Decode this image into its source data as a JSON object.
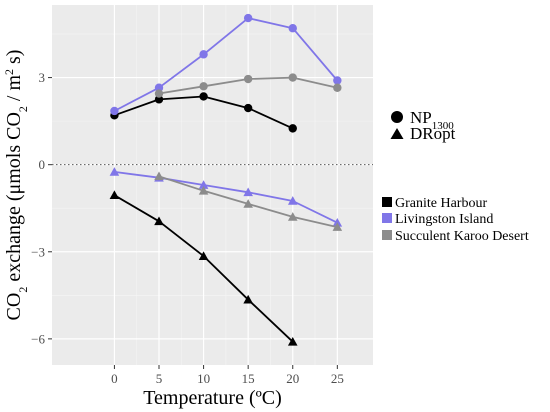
{
  "chart_data": {
    "type": "line",
    "x": [
      0,
      5,
      10,
      15,
      20,
      25
    ],
    "xlim": [
      -7,
      29
    ],
    "ylim": [
      -6.9,
      5.5
    ],
    "xticks": [
      "0",
      "5",
      "10",
      "15",
      "20",
      "25"
    ],
    "yticks": [
      {
        "value": -6,
        "label": "−6"
      },
      {
        "value": -3,
        "label": "−3"
      },
      {
        "value": 0,
        "label": "0"
      },
      {
        "value": 3,
        "label": "3"
      }
    ],
    "xlabel": "Temperature (ºC)",
    "ylabel": {
      "p1": "CO",
      "s1": "2",
      "p2": " exchange (μmols CO",
      "s2": "2",
      "p3": " / m",
      "s3": "2",
      "p4": " s)"
    },
    "grid": true,
    "reference_line": {
      "y": 0,
      "style": "dotted"
    },
    "background_color": "#ebebeb",
    "series": [
      {
        "name": "Granite Harbour",
        "metric": "NP1300",
        "marker": "circle",
        "color": "#000000",
        "x": [
          0,
          5,
          10,
          15,
          20
        ],
        "values": [
          1.7,
          2.25,
          2.35,
          1.95,
          1.25
        ]
      },
      {
        "name": "Granite Harbour",
        "metric": "DRopt",
        "marker": "triangle",
        "color": "#000000",
        "x": [
          0,
          5,
          10,
          15,
          20
        ],
        "values": [
          -1.05,
          -1.95,
          -3.15,
          -4.65,
          -6.1
        ]
      },
      {
        "name": "Livingston Island",
        "metric": "NP1300",
        "marker": "circle",
        "color": "#8076e8",
        "x": [
          0,
          5,
          10,
          15,
          20,
          25
        ],
        "values": [
          1.85,
          2.65,
          3.8,
          5.05,
          4.7,
          2.9
        ]
      },
      {
        "name": "Livingston Island",
        "metric": "DRopt",
        "marker": "triangle",
        "color": "#8076e8",
        "x": [
          0,
          5,
          10,
          15,
          20,
          25
        ],
        "values": [
          -0.25,
          -0.45,
          -0.7,
          -0.95,
          -1.25,
          -2.0
        ]
      },
      {
        "name": "Succulent Karoo Desert",
        "metric": "NP1300",
        "marker": "circle",
        "color": "#8c8c8c",
        "x": [
          5,
          10,
          15,
          20,
          25
        ],
        "values": [
          2.45,
          2.7,
          2.95,
          3.0,
          2.65
        ]
      },
      {
        "name": "Succulent Karoo Desert",
        "metric": "DRopt",
        "marker": "triangle",
        "color": "#8c8c8c",
        "x": [
          5,
          10,
          15,
          20,
          25
        ],
        "values": [
          -0.4,
          -0.9,
          -1.35,
          -1.8,
          -2.15
        ]
      }
    ],
    "shape_legend": [
      {
        "marker": "circle",
        "label_main": "NP",
        "label_sub": "1300"
      },
      {
        "marker": "triangle",
        "label_main": "DRopt",
        "label_sub": ""
      }
    ],
    "color_legend": [
      {
        "label": "Granite Harbour",
        "color": "#000000"
      },
      {
        "label": "Livingston Island",
        "color": "#8076e8"
      },
      {
        "label": "Succulent Karoo Desert",
        "color": "#8c8c8c"
      }
    ]
  }
}
